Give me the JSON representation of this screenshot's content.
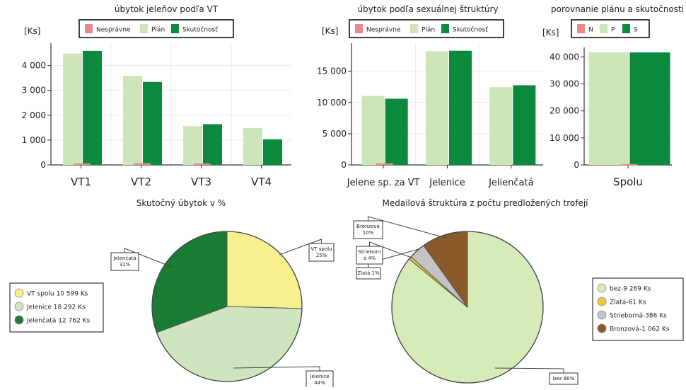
{
  "colors": {
    "nesprávne": "#e88a8a",
    "plán": "#cce5b9",
    "skutočnosť": "#0b8a3e",
    "grid": "#e9e9e9",
    "pie_vt_spolu": "#f7f08e",
    "pie_jelenice": "#cfe5bf",
    "pie_jelencata": "#1a7b35",
    "pie_bez": "#d6ebb8",
    "pie_zlata": "#e8cc3a",
    "pie_strieborna": "#c3c3c3",
    "pie_bronzova": "#8a5a2b"
  },
  "chart_data": [
    {
      "id": "vt",
      "type": "bar",
      "title": "úbytok jeleňov podľa VT",
      "ylabel": "[Ks]",
      "categories": [
        "VT1",
        "VT2",
        "VT3",
        "VT4"
      ],
      "ylim": [
        0,
        4900
      ],
      "yticks": [
        0,
        1000,
        2000,
        3000,
        4000
      ],
      "tick_labels": [
        "0",
        "1 000",
        "2 000",
        "3 000",
        "4 000"
      ],
      "grid": true,
      "legend": {
        "placement": "top",
        "labels": [
          "Nesprávne",
          "Plán",
          "Skutočnosť"
        ]
      },
      "series": [
        {
          "name": "Nesprávne",
          "values": [
            60,
            70,
            60,
            0
          ]
        },
        {
          "name": "Plán",
          "values": [
            4480,
            3580,
            1560,
            1480
          ]
        },
        {
          "name": "Skutočnosť",
          "values": [
            4590,
            3340,
            1640,
            1030
          ]
        }
      ]
    },
    {
      "id": "sex",
      "type": "bar",
      "title": "úbytok podľa sexuálnej štruktúry",
      "ylabel": "[Ks]",
      "categories": [
        "Jelene sp. za VT",
        "Jelenice",
        "Jelienčatá"
      ],
      "ylim": [
        0,
        19500
      ],
      "yticks": [
        0,
        5000,
        10000,
        15000
      ],
      "tick_labels": [
        "0",
        "5 000",
        "10 000",
        "15 000"
      ],
      "grid": true,
      "legend": {
        "placement": "top",
        "labels": [
          "Nesprávne",
          "Plán",
          "Skutočnosť"
        ]
      },
      "series": [
        {
          "name": "Nesprávne",
          "values": [
            250,
            0,
            0
          ]
        },
        {
          "name": "Plán",
          "values": [
            11050,
            18200,
            12450
          ]
        },
        {
          "name": "Skutočnosť",
          "values": [
            10600,
            18290,
            12760
          ]
        }
      ]
    },
    {
      "id": "total",
      "type": "bar",
      "title": "porovnanie plánu a skutočnosti",
      "ylabel": "[Ks]",
      "categories": [
        "Spolu"
      ],
      "ylim": [
        0,
        43500
      ],
      "yticks": [
        0,
        10000,
        20000,
        30000,
        40000
      ],
      "tick_labels": [
        "0",
        "10 000",
        "20 000",
        "30 000",
        "40 000"
      ],
      "grid": true,
      "legend": {
        "placement": "top",
        "labels": [
          "N",
          "P",
          "S"
        ]
      },
      "series": [
        {
          "name": "N",
          "values": [
            300
          ]
        },
        {
          "name": "P",
          "values": [
            41700
          ]
        },
        {
          "name": "S",
          "values": [
            41650
          ]
        }
      ]
    },
    {
      "id": "pie1",
      "type": "pie",
      "title": "Skutočný úbytok v %",
      "slices": [
        {
          "label": "VT spolu 10 599 Ks",
          "value": 10599,
          "callout": [
            "VT spolu",
            "25%"
          ]
        },
        {
          "label": "Jelenice 18 292 Ks",
          "value": 18292,
          "callout": [
            "Jelenice",
            "44%"
          ]
        },
        {
          "label": "Jelenčatá 12 762 Ks",
          "value": 12762,
          "callout": [
            "Jelenčatá",
            "31%"
          ]
        }
      ]
    },
    {
      "id": "pie2",
      "type": "pie",
      "title": "Medailová štruktúra z počtu predložených trofejí",
      "slices": [
        {
          "label": "bez-9 269 Ks",
          "value": 9269,
          "callout": [
            "bez 86%"
          ]
        },
        {
          "label": "Zlatá-61 Ks",
          "value": 61,
          "callout": [
            "Zlatá 1%"
          ]
        },
        {
          "label": "Strieborná-386 Ks",
          "value": 386,
          "callout": [
            "Strieborn",
            "á 4%"
          ]
        },
        {
          "label": "Bronzová-1 062 Ks",
          "value": 1062,
          "callout": [
            "Bronzová",
            "10%"
          ]
        }
      ]
    }
  ]
}
